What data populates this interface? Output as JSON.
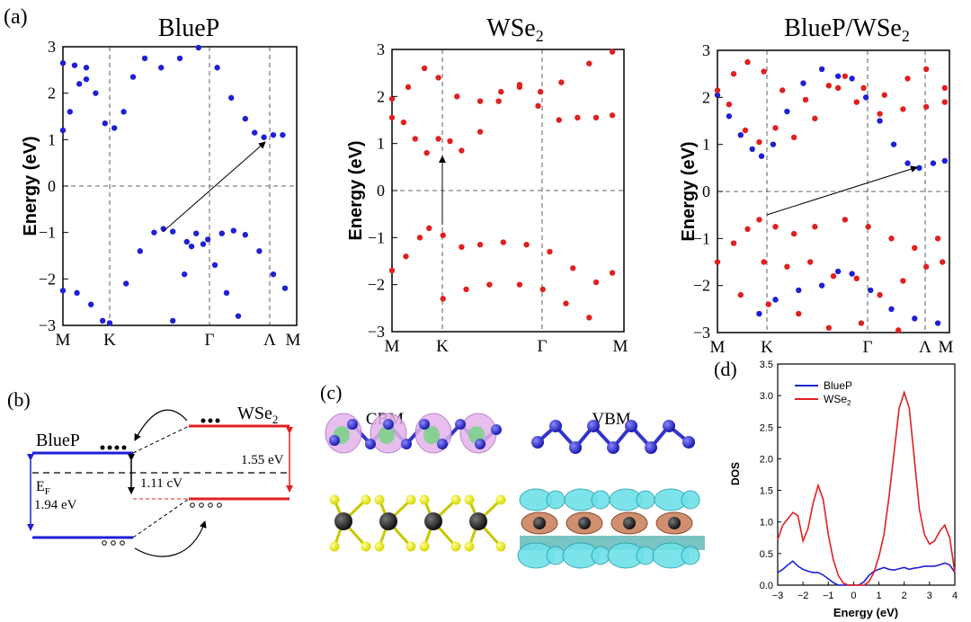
{
  "panel_labels": {
    "a": "(a)",
    "b": "(b)",
    "c": "(c)",
    "d": "(d)"
  },
  "colors": {
    "blue": "#1f1fd6",
    "red": "#e02020",
    "black": "#000000"
  },
  "chart_data": [
    {
      "type": "scatter",
      "name": "band-bluep",
      "title": "BlueP",
      "ylabel": "Energy (eV)",
      "ylim": [
        -3,
        3
      ],
      "yticks": [
        "3",
        "2",
        "1",
        "0",
        "−1",
        "−2",
        "−3"
      ],
      "xticks": [
        "M",
        "K",
        "Γ",
        "Λ",
        "M"
      ],
      "series": [
        {
          "name": "BlueP",
          "color": "#1f1fd6",
          "points": [
            [
              0.0,
              1.2
            ],
            [
              0.03,
              1.6
            ],
            [
              0.07,
              2.2
            ],
            [
              0.1,
              2.55
            ],
            [
              0.14,
              2.0
            ],
            [
              0.18,
              1.35
            ],
            [
              0.22,
              1.25
            ],
            [
              0.26,
              1.6
            ],
            [
              0.3,
              2.35
            ],
            [
              0.35,
              2.75
            ],
            [
              0.42,
              2.55
            ],
            [
              0.5,
              2.75
            ],
            [
              0.58,
              2.98
            ],
            [
              0.66,
              2.55
            ],
            [
              0.72,
              1.9
            ],
            [
              0.78,
              1.45
            ],
            [
              0.82,
              1.15
            ],
            [
              0.86,
              1.05
            ],
            [
              0.9,
              1.1
            ],
            [
              0.94,
              1.1
            ],
            [
              0.0,
              2.65
            ],
            [
              0.05,
              2.6
            ],
            [
              0.1,
              2.3
            ],
            [
              0.2,
              -2.95
            ],
            [
              0.27,
              -2.1
            ],
            [
              0.33,
              -1.4
            ],
            [
              0.39,
              -1.0
            ],
            [
              0.43,
              -0.92
            ],
            [
              0.47,
              -0.98
            ],
            [
              0.53,
              -1.2
            ],
            [
              0.57,
              -1.02
            ],
            [
              0.62,
              -1.15
            ],
            [
              0.68,
              -1.02
            ],
            [
              0.73,
              -0.96
            ],
            [
              0.78,
              -1.05
            ],
            [
              0.84,
              -1.4
            ],
            [
              0.9,
              -1.9
            ],
            [
              0.95,
              -2.2
            ],
            [
              0.0,
              -2.25
            ],
            [
              0.06,
              -2.3
            ],
            [
              0.12,
              -2.55
            ],
            [
              0.17,
              -2.9
            ],
            [
              0.47,
              -2.9
            ],
            [
              0.52,
              -1.9
            ],
            [
              0.55,
              -1.3
            ],
            [
              0.6,
              -1.25
            ],
            [
              0.65,
              -1.7
            ],
            [
              0.7,
              -2.3
            ],
            [
              0.75,
              -2.8
            ]
          ]
        }
      ],
      "annotation": "indirect gap arrow from ~(0.43,-0.92) to ~(0.86,1.05)"
    },
    {
      "type": "scatter",
      "name": "band-wse2",
      "title": "WSe2",
      "ylabel": "Energy (eV)",
      "ylim": [
        -3,
        3
      ],
      "yticks": [
        "3",
        "2",
        "1",
        "0",
        "−1",
        "−2",
        "−3"
      ],
      "xticks": [
        "M",
        "K",
        "Γ",
        "M"
      ],
      "series": [
        {
          "name": "WSe2",
          "color": "#e02020",
          "points": [
            [
              0.0,
              1.55
            ],
            [
              0.05,
              1.45
            ],
            [
              0.1,
              1.1
            ],
            [
              0.15,
              0.8
            ],
            [
              0.2,
              1.1
            ],
            [
              0.25,
              1.05
            ],
            [
              0.3,
              0.85
            ],
            [
              0.38,
              1.25
            ],
            [
              0.46,
              1.9
            ],
            [
              0.55,
              2.2
            ],
            [
              0.63,
              1.8
            ],
            [
              0.72,
              1.5
            ],
            [
              0.8,
              1.55
            ],
            [
              0.88,
              1.55
            ],
            [
              0.95,
              1.6
            ],
            [
              0.0,
              1.95
            ],
            [
              0.07,
              2.2
            ],
            [
              0.14,
              2.6
            ],
            [
              0.2,
              2.4
            ],
            [
              0.28,
              2.0
            ],
            [
              0.38,
              1.9
            ],
            [
              0.47,
              2.1
            ],
            [
              0.55,
              2.25
            ],
            [
              0.64,
              2.1
            ],
            [
              0.73,
              2.3
            ],
            [
              0.85,
              2.7
            ],
            [
              0.95,
              2.95
            ],
            [
              0.0,
              -1.7
            ],
            [
              0.06,
              -1.4
            ],
            [
              0.12,
              -1.0
            ],
            [
              0.16,
              -0.8
            ],
            [
              0.22,
              -0.95
            ],
            [
              0.3,
              -1.2
            ],
            [
              0.38,
              -1.15
            ],
            [
              0.48,
              -1.1
            ],
            [
              0.58,
              -1.15
            ],
            [
              0.68,
              -1.3
            ],
            [
              0.78,
              -1.65
            ],
            [
              0.88,
              -1.95
            ],
            [
              0.95,
              -1.75
            ],
            [
              0.22,
              -2.3
            ],
            [
              0.32,
              -2.1
            ],
            [
              0.42,
              -2.0
            ],
            [
              0.55,
              -2.0
            ],
            [
              0.65,
              -2.1
            ],
            [
              0.75,
              -2.4
            ],
            [
              0.85,
              -2.7
            ]
          ]
        }
      ],
      "annotation": "direct gap arrow at K from -0.8 to 0.8"
    },
    {
      "type": "scatter",
      "name": "band-heterostructure",
      "title": "BlueP/WSe2",
      "ylabel": "Energy (eV)",
      "ylim": [
        -3,
        3
      ],
      "yticks": [
        "3",
        "2",
        "1",
        "0",
        "−1",
        "−2",
        "−3"
      ],
      "xticks": [
        "M",
        "K",
        "Γ",
        "Λ",
        "M"
      ],
      "series": [
        {
          "name": "BlueP",
          "color": "#1f1fd6",
          "points": [
            [
              0.0,
              2.05
            ],
            [
              0.05,
              1.6
            ],
            [
              0.1,
              1.2
            ],
            [
              0.15,
              0.9
            ],
            [
              0.19,
              0.75
            ],
            [
              0.24,
              1.0
            ],
            [
              0.3,
              1.7
            ],
            [
              0.37,
              2.3
            ],
            [
              0.45,
              2.6
            ],
            [
              0.52,
              2.45
            ],
            [
              0.58,
              2.4
            ],
            [
              0.64,
              2.0
            ],
            [
              0.7,
              1.5
            ],
            [
              0.76,
              1.0
            ],
            [
              0.82,
              0.6
            ],
            [
              0.87,
              0.5
            ],
            [
              0.93,
              0.6
            ],
            [
              0.98,
              0.65
            ],
            [
              0.18,
              -2.6
            ],
            [
              0.25,
              -2.3
            ],
            [
              0.35,
              -2.1
            ],
            [
              0.45,
              -2.0
            ],
            [
              0.52,
              -1.7
            ],
            [
              0.58,
              -1.75
            ],
            [
              0.66,
              -2.1
            ],
            [
              0.75,
              -2.5
            ],
            [
              0.85,
              -2.7
            ],
            [
              0.95,
              -2.8
            ]
          ]
        },
        {
          "name": "WSe2",
          "color": "#e02020",
          "points": [
            [
              0.0,
              2.15
            ],
            [
              0.07,
              2.5
            ],
            [
              0.13,
              2.75
            ],
            [
              0.2,
              2.55
            ],
            [
              0.28,
              2.15
            ],
            [
              0.38,
              1.95
            ],
            [
              0.48,
              2.25
            ],
            [
              0.55,
              2.45
            ],
            [
              0.63,
              2.2
            ],
            [
              0.72,
              2.05
            ],
            [
              0.82,
              2.4
            ],
            [
              0.9,
              2.6
            ],
            [
              0.98,
              2.2
            ],
            [
              0.05,
              1.85
            ],
            [
              0.12,
              1.3
            ],
            [
              0.18,
              1.05
            ],
            [
              0.25,
              1.35
            ],
            [
              0.33,
              1.15
            ],
            [
              0.42,
              1.55
            ],
            [
              0.52,
              2.2
            ],
            [
              0.6,
              1.9
            ],
            [
              0.7,
              1.65
            ],
            [
              0.8,
              1.75
            ],
            [
              0.9,
              1.8
            ],
            [
              0.98,
              1.9
            ],
            [
              0.0,
              -1.5
            ],
            [
              0.07,
              -1.1
            ],
            [
              0.13,
              -0.8
            ],
            [
              0.18,
              -0.6
            ],
            [
              0.25,
              -0.75
            ],
            [
              0.33,
              -0.9
            ],
            [
              0.42,
              -0.75
            ],
            [
              0.55,
              -0.6
            ],
            [
              0.65,
              -0.75
            ],
            [
              0.75,
              -1.0
            ],
            [
              0.85,
              -1.2
            ],
            [
              0.95,
              -1.0
            ],
            [
              0.2,
              -1.5
            ],
            [
              0.3,
              -1.6
            ],
            [
              0.4,
              -1.5
            ],
            [
              0.5,
              -1.8
            ],
            [
              0.6,
              -1.85
            ],
            [
              0.7,
              -2.2
            ],
            [
              0.8,
              -1.9
            ],
            [
              0.9,
              -1.6
            ],
            [
              0.97,
              -1.5
            ],
            [
              0.1,
              -2.2
            ],
            [
              0.22,
              -2.4
            ],
            [
              0.35,
              -2.6
            ],
            [
              0.48,
              -2.9
            ],
            [
              0.62,
              -2.8
            ],
            [
              0.78,
              -2.95
            ]
          ]
        }
      ],
      "annotation": "indirect gap arrow from ~(0.18,-0.6) to ~(0.87,0.5)"
    },
    {
      "type": "line",
      "name": "dos",
      "title": "",
      "xlabel": "Energy (eV)",
      "ylabel": "DOS",
      "xlim": [
        -3,
        4
      ],
      "ylim": [
        0,
        3.5
      ],
      "xticks": [
        "−3",
        "−2",
        "−1",
        "0",
        "1",
        "2",
        "3",
        "4"
      ],
      "yticks": [
        "0.0",
        "0.5",
        "1.0",
        "1.5",
        "2.0",
        "2.5",
        "3.0",
        "3.5"
      ],
      "legend_position": "top-left",
      "series": [
        {
          "name": "BlueP",
          "color": "#1f1fd6",
          "x": [
            -3,
            -2.8,
            -2.6,
            -2.4,
            -2.2,
            -2.0,
            -1.8,
            -1.6,
            -1.4,
            -1.2,
            -1.0,
            -0.8,
            -0.6,
            -0.4,
            -0.2,
            0,
            0.2,
            0.4,
            0.6,
            0.8,
            1.0,
            1.2,
            1.4,
            1.6,
            1.8,
            2.0,
            2.2,
            2.4,
            2.6,
            2.8,
            3.0,
            3.2,
            3.4,
            3.6,
            3.8,
            4.0
          ],
          "values": [
            0.2,
            0.25,
            0.32,
            0.38,
            0.3,
            0.25,
            0.22,
            0.2,
            0.2,
            0.16,
            0.1,
            0.04,
            0.0,
            0.0,
            0.0,
            0.0,
            0.0,
            0.05,
            0.15,
            0.22,
            0.25,
            0.28,
            0.25,
            0.24,
            0.26,
            0.28,
            0.25,
            0.27,
            0.28,
            0.3,
            0.3,
            0.3,
            0.32,
            0.35,
            0.32,
            0.2
          ]
        },
        {
          "name": "WSe2",
          "label_main": "WSe",
          "label_sub": "2",
          "color": "#e02020",
          "x": [
            -3,
            -2.8,
            -2.6,
            -2.4,
            -2.2,
            -2.0,
            -1.8,
            -1.6,
            -1.4,
            -1.2,
            -1.0,
            -0.8,
            -0.6,
            -0.4,
            -0.2,
            0,
            0.2,
            0.4,
            0.6,
            0.8,
            1.0,
            1.2,
            1.4,
            1.6,
            1.8,
            2.0,
            2.2,
            2.4,
            2.6,
            2.8,
            3.0,
            3.2,
            3.4,
            3.6,
            3.8,
            4.0
          ],
          "values": [
            0.72,
            0.95,
            1.05,
            1.15,
            1.1,
            0.7,
            0.9,
            1.3,
            1.58,
            1.35,
            0.8,
            0.4,
            0.15,
            0.03,
            0.0,
            0.0,
            0.0,
            0.0,
            0.05,
            0.2,
            0.45,
            0.8,
            1.4,
            2.1,
            2.8,
            3.05,
            2.8,
            2.0,
            1.2,
            0.8,
            0.65,
            0.7,
            0.85,
            0.95,
            0.75,
            0.2
          ]
        }
      ]
    }
  ],
  "energy_diagram": {
    "bluep_label": "BlueP",
    "wse2_main": "WSe",
    "wse2_sub": "2",
    "ef_main": "E",
    "ef_sub": "F",
    "gap_bluep": "1.94 eV",
    "gap_wse2": "1.55 eV",
    "offset": "1.11 cV"
  },
  "structure": {
    "cbm_label": "CBM",
    "vbm_label": "VBM"
  }
}
